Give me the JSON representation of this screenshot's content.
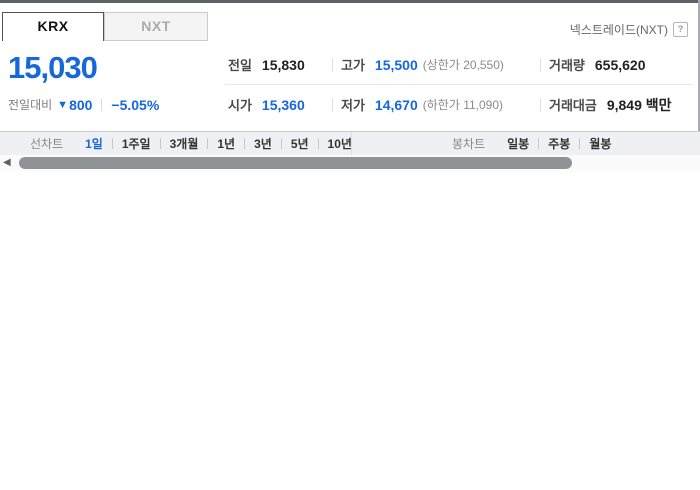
{
  "colors": {
    "accent_blue": "#1667d9",
    "toolbar_bg": "#eef0f4",
    "tab_inactive_bg": "#f4f4f4",
    "scroll_thumb": "#909396"
  },
  "tabs": {
    "krx": "KRX",
    "nxt": "NXT"
  },
  "header": {
    "nextrade_label": "넥스트레이드(NXT)",
    "help_icon": "?"
  },
  "price": {
    "current": "15,030",
    "change_label": "전일대비",
    "down_arrow": "▼",
    "change_value": "800",
    "change_percent": "−5.05%"
  },
  "summary": {
    "rows": [
      {
        "cells": [
          {
            "label": "전일",
            "value": "15,830"
          },
          {
            "label": "고가",
            "value": "15,500",
            "extra": "(상한가 20,550)"
          },
          {
            "label": "거래량",
            "value": "655,620"
          }
        ]
      },
      {
        "cells": [
          {
            "label": "시가",
            "value": "15,360"
          },
          {
            "label": "저가",
            "value": "14,670",
            "extra": "(하한가 11,090)"
          },
          {
            "label": "거래대금",
            "value": "9,849 백만"
          }
        ]
      }
    ]
  },
  "toolbar": {
    "line_chart_label": "선차트",
    "periods": [
      "1일",
      "1주일",
      "3개월",
      "1년",
      "3년",
      "5년",
      "10년"
    ],
    "active_period": "1일",
    "candle_chart_label": "봉차트",
    "candle_periods": [
      "일봉",
      "주봉",
      "월봉"
    ]
  },
  "scrollbar": {
    "left_arrow": "◀"
  }
}
